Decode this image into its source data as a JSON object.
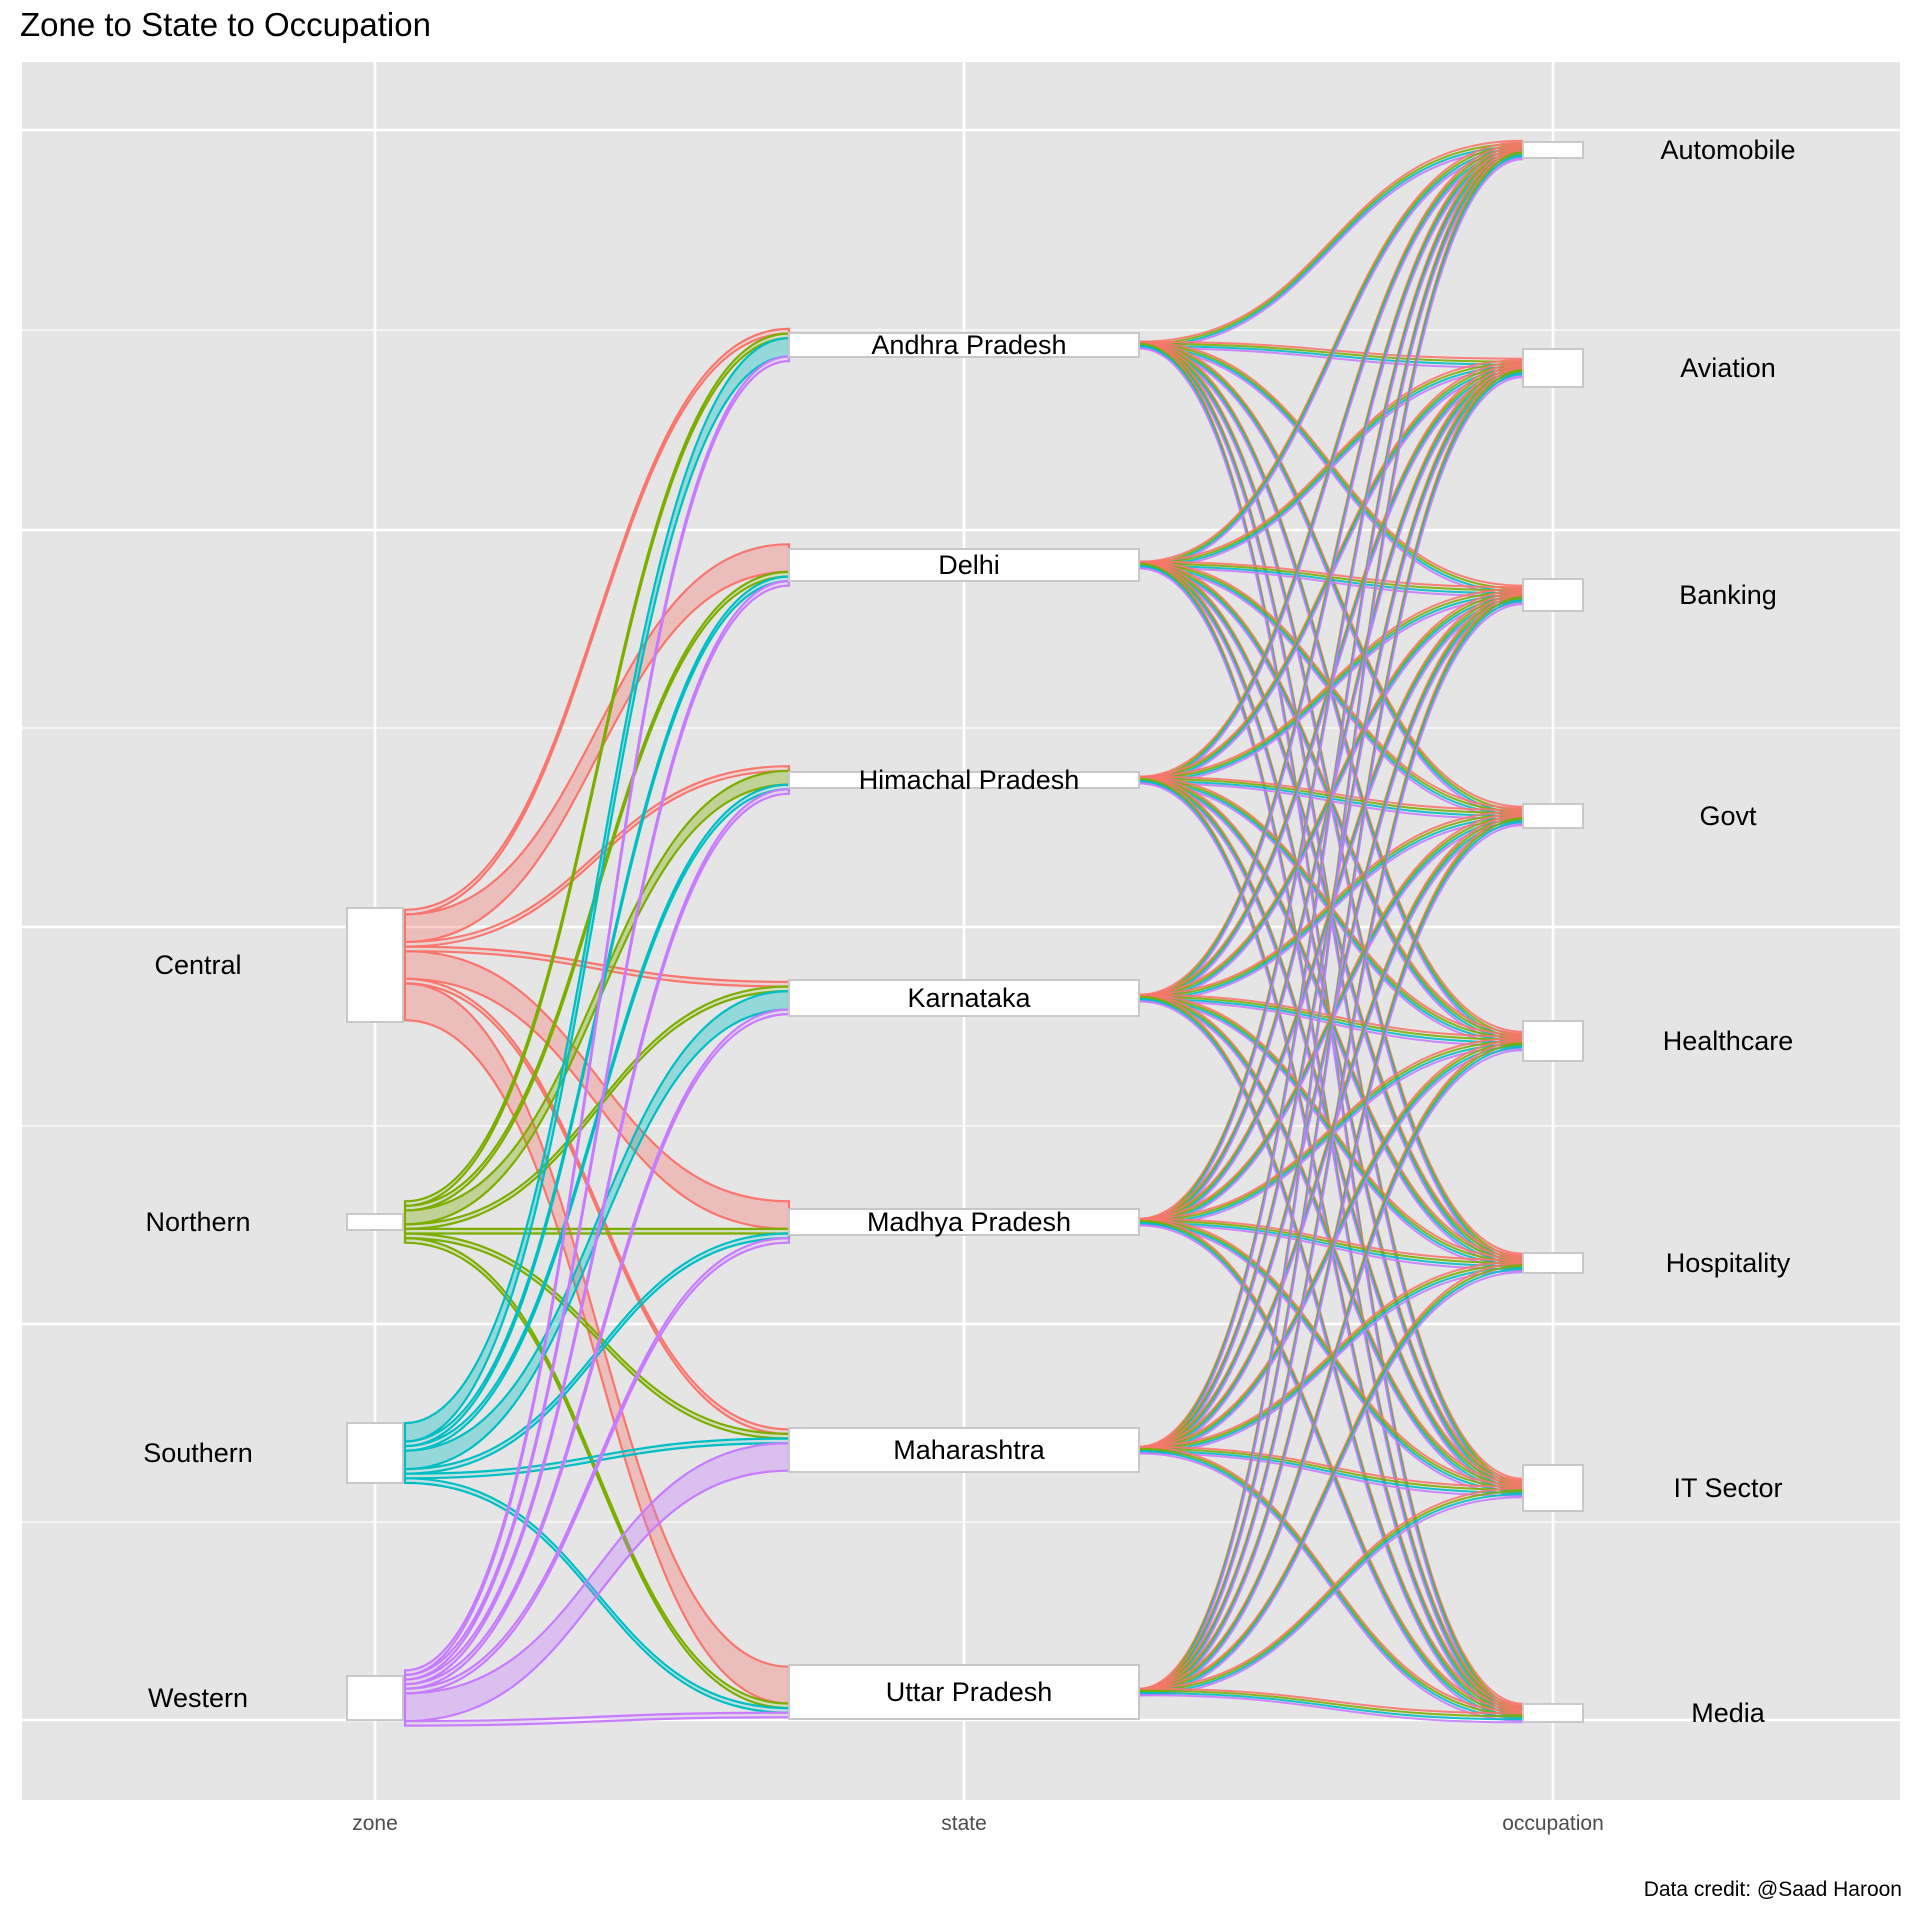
{
  "title": "Zone to State to Occupation",
  "caption": "Data credit: @Saad Haroon",
  "colors": {
    "panel": "#e5e5e5",
    "grid": "#ffffff",
    "zones": {
      "Central": "#f8766d",
      "Northern": "#7cae00",
      "Southern": "#00bfc4",
      "Western": "#c77cff"
    }
  },
  "chart_data": {
    "type": "alluvial",
    "axes": [
      "zone",
      "state",
      "occupation"
    ],
    "grid": true,
    "zones": [
      "Central",
      "Northern",
      "Southern",
      "Western"
    ],
    "states": [
      "Andhra Pradesh",
      "Delhi",
      "Himachal Pradesh",
      "Karnataka",
      "Madhya Pradesh",
      "Maharashtra",
      "Uttar Pradesh"
    ],
    "occupations": [
      "Automobile",
      "Aviation",
      "Banking",
      "Govt",
      "Healthcare",
      "Hospitality",
      "IT Sector",
      "Media"
    ],
    "zone_state_flows": [
      {
        "zone": "Central",
        "state": "Delhi",
        "value": 6
      },
      {
        "zone": "Central",
        "state": "Madhya Pradesh",
        "value": 6
      },
      {
        "zone": "Central",
        "state": "Uttar Pradesh",
        "value": 8
      },
      {
        "zone": "Central",
        "state": "Andhra Pradesh",
        "value": 1
      },
      {
        "zone": "Central",
        "state": "Himachal Pradesh",
        "value": 1
      },
      {
        "zone": "Central",
        "state": "Karnataka",
        "value": 1
      },
      {
        "zone": "Central",
        "state": "Maharashtra",
        "value": 1
      },
      {
        "zone": "Northern",
        "state": "Himachal Pradesh",
        "value": 3
      },
      {
        "zone": "Northern",
        "state": "Andhra Pradesh",
        "value": 1
      },
      {
        "zone": "Northern",
        "state": "Delhi",
        "value": 1
      },
      {
        "zone": "Northern",
        "state": "Karnataka",
        "value": 1
      },
      {
        "zone": "Northern",
        "state": "Madhya Pradesh",
        "value": 1
      },
      {
        "zone": "Northern",
        "state": "Maharashtra",
        "value": 1
      },
      {
        "zone": "Northern",
        "state": "Uttar Pradesh",
        "value": 1
      },
      {
        "zone": "Southern",
        "state": "Andhra Pradesh",
        "value": 4
      },
      {
        "zone": "Southern",
        "state": "Karnataka",
        "value": 4
      },
      {
        "zone": "Southern",
        "state": "Delhi",
        "value": 1
      },
      {
        "zone": "Southern",
        "state": "Himachal Pradesh",
        "value": 1
      },
      {
        "zone": "Southern",
        "state": "Madhya Pradesh",
        "value": 1
      },
      {
        "zone": "Southern",
        "state": "Maharashtra",
        "value": 1
      },
      {
        "zone": "Southern",
        "state": "Uttar Pradesh",
        "value": 1
      },
      {
        "zone": "Western",
        "state": "Maharashtra",
        "value": 6
      },
      {
        "zone": "Western",
        "state": "Andhra Pradesh",
        "value": 1
      },
      {
        "zone": "Western",
        "state": "Delhi",
        "value": 1
      },
      {
        "zone": "Western",
        "state": "Himachal Pradesh",
        "value": 1
      },
      {
        "zone": "Western",
        "state": "Karnataka",
        "value": 1
      },
      {
        "zone": "Western",
        "state": "Madhya Pradesh",
        "value": 1
      },
      {
        "zone": "Western",
        "state": "Uttar Pradesh",
        "value": 1
      }
    ]
  }
}
